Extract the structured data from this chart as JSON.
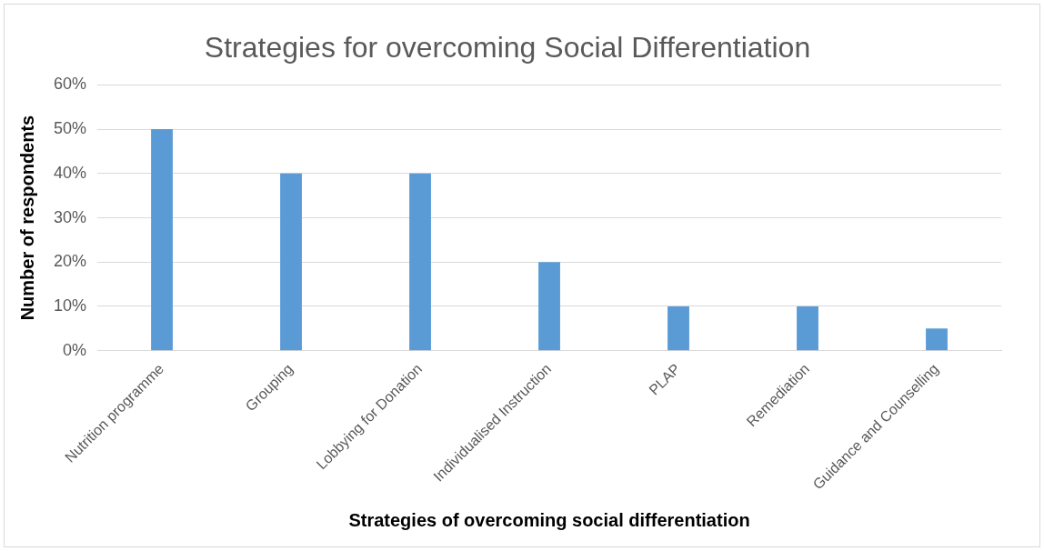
{
  "chart_data": {
    "type": "bar",
    "title": "Strategies for overcoming Social Differentiation",
    "xlabel": "Strategies of overcoming social differentiation",
    "ylabel": "Number of respondents",
    "categories": [
      "Nutrition programme",
      "Grouping",
      "Lobbying for Donation",
      "Individualised Instruction",
      "PLAP",
      "Remediation",
      "Guidance and Counselling"
    ],
    "values": [
      50,
      40,
      40,
      20,
      10,
      10,
      5
    ],
    "color": "#5b9bd5",
    "ylim": [
      0,
      60
    ],
    "yticks": [
      {
        "value": 0,
        "label": "0%"
      },
      {
        "value": 10,
        "label": "10%"
      },
      {
        "value": 20,
        "label": "20%"
      },
      {
        "value": 30,
        "label": "30%"
      },
      {
        "value": 40,
        "label": "40%"
      },
      {
        "value": 50,
        "label": "50%"
      },
      {
        "value": 60,
        "label": "60%"
      }
    ],
    "grid": "y",
    "legend": false
  }
}
